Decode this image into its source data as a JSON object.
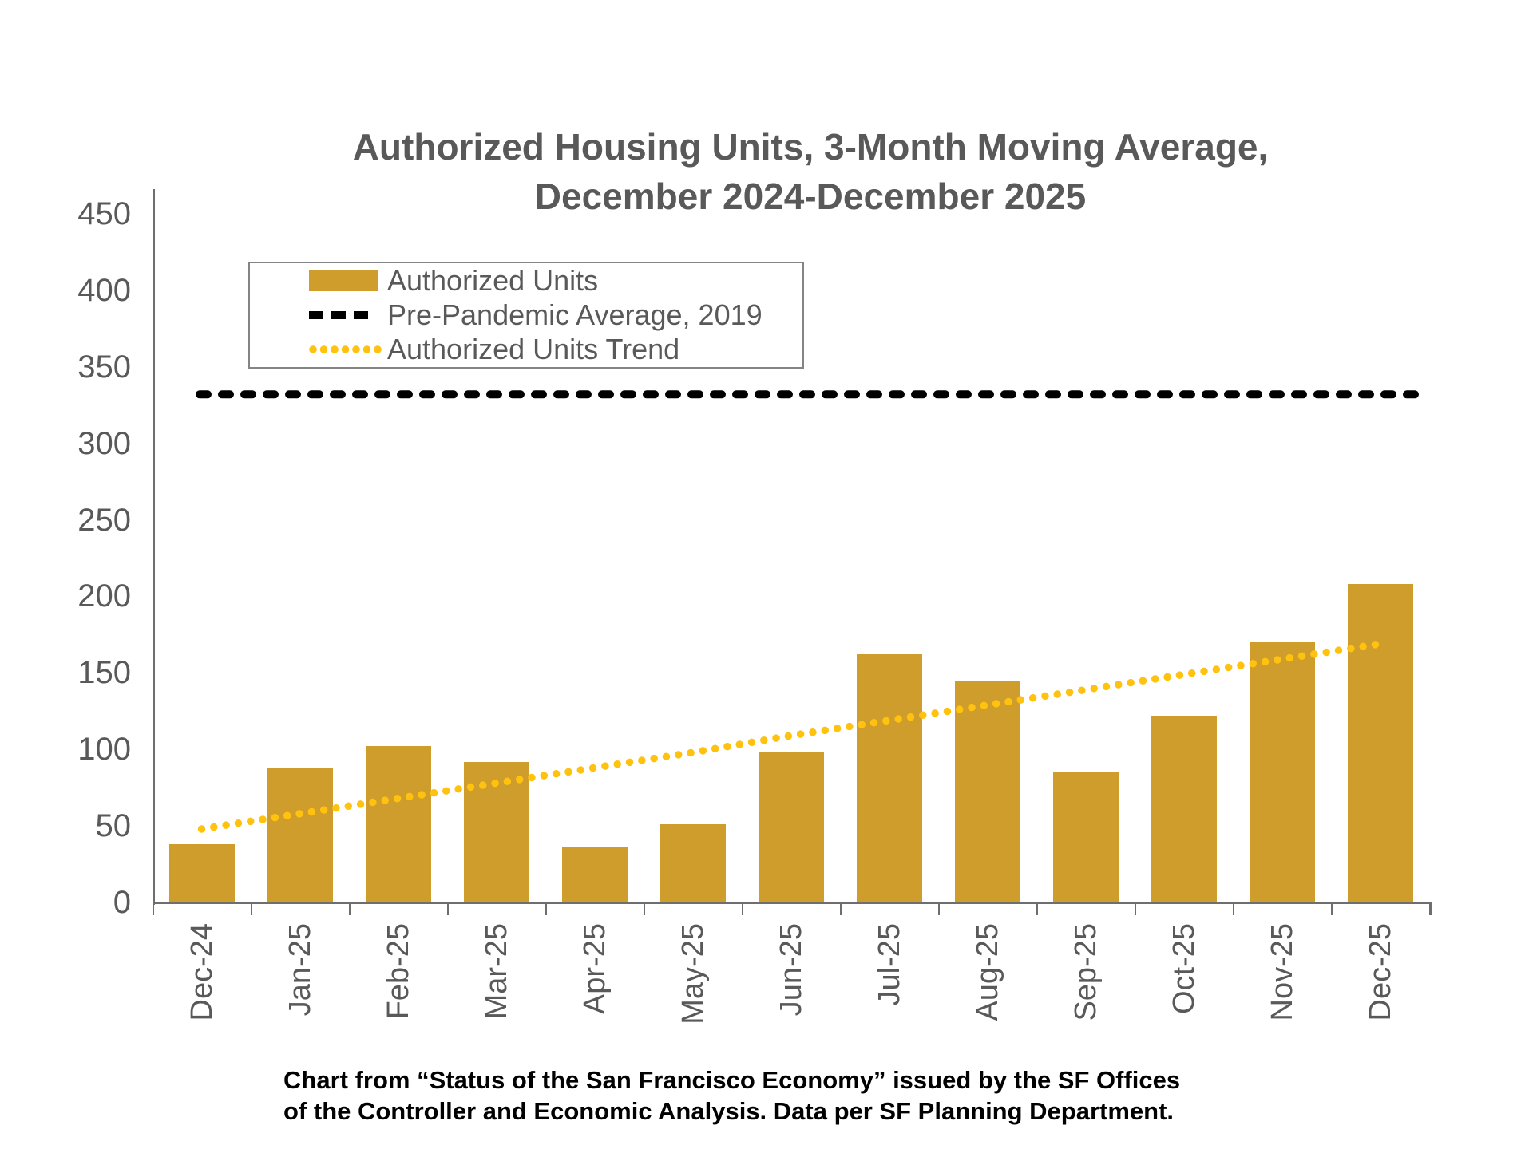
{
  "chart_data": {
    "type": "bar",
    "title": "Authorized Housing Units, 3-Month Moving Average,",
    "title_line2": "December 2024-December 2025",
    "categories": [
      "Dec-24",
      "Jan-25",
      "Feb-25",
      "Mar-25",
      "Apr-25",
      "May-25",
      "Jun-25",
      "Jul-25",
      "Aug-25",
      "Sep-25",
      "Oct-25",
      "Nov-25",
      "Dec-25"
    ],
    "series": [
      {
        "name": "Authorized Units",
        "type": "bar",
        "values": [
          38,
          88,
          102,
          92,
          36,
          51,
          98,
          162,
          145,
          85,
          122,
          170,
          208
        ]
      },
      {
        "name": "Pre-Pandemic Average, 2019",
        "type": "line-dashed",
        "value": 332
      },
      {
        "name": "Authorized Units Trend",
        "type": "line-dotted",
        "values": [
          48,
          58,
          68,
          78,
          88,
          98,
          109,
          119,
          129,
          139,
          149,
          159,
          169
        ]
      }
    ],
    "ylim": [
      0,
      450
    ],
    "yticks": [
      0,
      50,
      100,
      150,
      200,
      250,
      300,
      350,
      400,
      450
    ],
    "xlabel": "",
    "ylabel": "",
    "grid": false,
    "legend_position": "top-left"
  },
  "footer": {
    "line1": "Chart from “Status of the San Francisco Economy” issued by the SF Offices",
    "line2": "of the Controller and Economic Analysis. Data per SF Planning Department."
  },
  "colors": {
    "bar": "#CE9D2B",
    "trend": "#FFC20E",
    "average_line": "#000000",
    "text_gray": "#595959",
    "axis_gray": "#6E6E6E"
  }
}
